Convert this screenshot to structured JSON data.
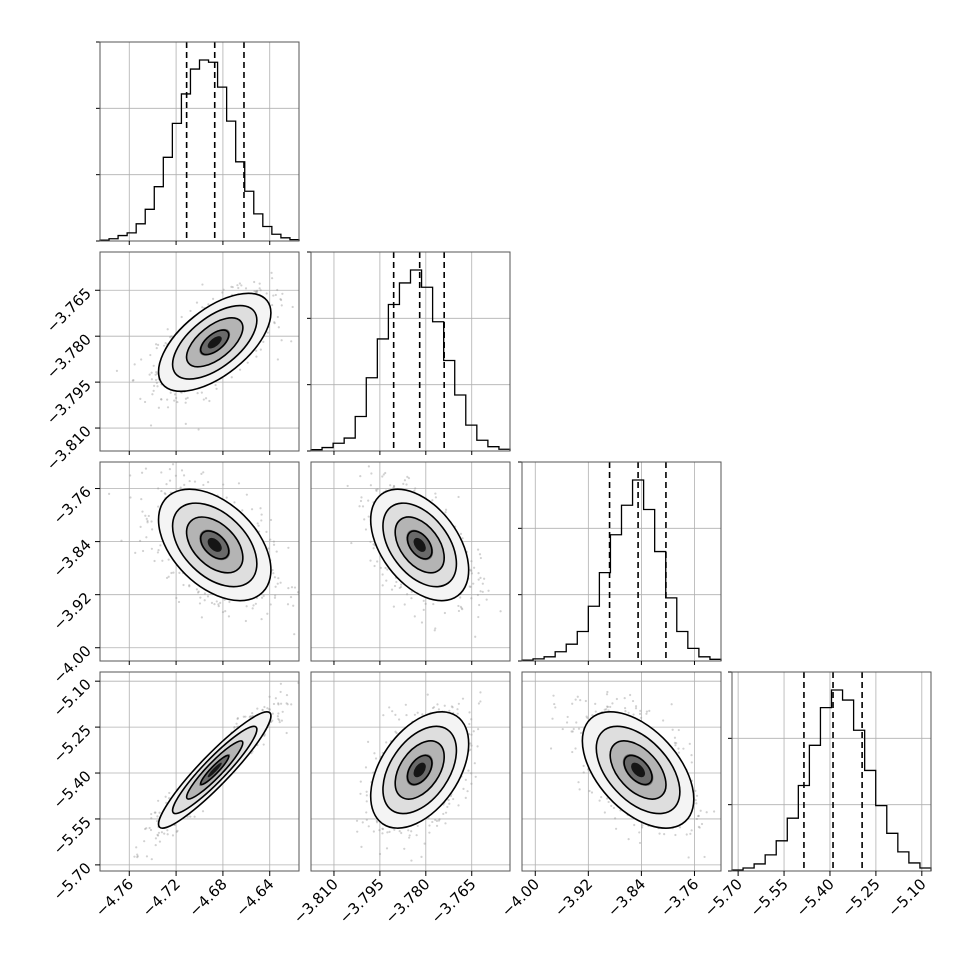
{
  "chart_data": {
    "type": "corner",
    "grid": true,
    "variables": [
      {
        "range": [
          -4.785,
          -4.615
        ],
        "center": -4.687,
        "sigma": 0.024,
        "quantiles": [
          -4.711,
          -4.687,
          -4.662
        ],
        "ticks": [
          -4.76,
          -4.72,
          -4.68,
          -4.64
        ],
        "tick_labels": [
          "−4.76",
          "−4.72",
          "−4.68",
          "−4.64"
        ],
        "hist_counts": [
          0.2,
          0.5,
          1.2,
          1.8,
          3.8,
          7.0,
          12.0,
          18.5,
          26.0,
          32.5,
          38.0,
          40.0,
          39.5,
          34.0,
          26.5,
          17.5,
          11.0,
          6.0,
          3.2,
          1.5,
          0.7,
          0.3
        ]
      },
      {
        "range": [
          -3.8175,
          -3.7525
        ],
        "center": -3.782,
        "sigma": 0.008,
        "quantiles": [
          -3.7905,
          -3.782,
          -3.774
        ],
        "ticks": [
          -3.81,
          -3.795,
          -3.78,
          -3.765
        ],
        "tick_labels": [
          "−3.810",
          "−3.795",
          "−3.780",
          "−3.765"
        ],
        "hist_counts": [
          0.3,
          0.8,
          1.8,
          3.0,
          8.0,
          17.0,
          26.0,
          34.0,
          39.0,
          42.0,
          38.0,
          30.0,
          21.0,
          13.0,
          6.0,
          2.5,
          1.0,
          0.4
        ]
      },
      {
        "range": [
          -4.02,
          -3.72
        ],
        "center": -3.845,
        "sigma": 0.042,
        "quantiles": [
          -3.888,
          -3.845,
          -3.803
        ],
        "ticks": [
          -4.0,
          -3.92,
          -3.84,
          -3.76
        ],
        "tick_labels": [
          "−4.00",
          "−3.92",
          "−3.84",
          "−3.76"
        ],
        "hist_counts": [
          0.2,
          0.5,
          1.0,
          2.2,
          4.0,
          7.0,
          13.0,
          21.0,
          30.0,
          37.0,
          43.0,
          36.0,
          26.0,
          15.0,
          7.0,
          3.0,
          1.0,
          0.4
        ]
      },
      {
        "range": [
          -5.72,
          -5.07
        ],
        "center": -5.39,
        "sigma": 0.095,
        "quantiles": [
          -5.485,
          -5.39,
          -5.295
        ],
        "ticks": [
          -5.7,
          -5.55,
          -5.4,
          -5.25,
          -5.1
        ],
        "tick_labels": [
          "−5.70",
          "−5.55",
          "−5.40",
          "−5.25",
          "−5.10"
        ],
        "hist_counts": [
          0.2,
          0.6,
          1.4,
          3.2,
          6.0,
          10.5,
          17.0,
          25.0,
          32.5,
          36.0,
          34.0,
          28.0,
          20.0,
          13.0,
          7.5,
          3.8,
          1.6,
          0.6
        ]
      }
    ],
    "correlations": {
      "1_0": 0.6,
      "2_0": -0.45,
      "2_1": -0.45,
      "3_0": 0.93,
      "3_1": 0.45,
      "3_2": -0.5
    },
    "contour_levels_sigma": [
      0.5,
      1.0,
      1.5,
      2.0
    ]
  }
}
